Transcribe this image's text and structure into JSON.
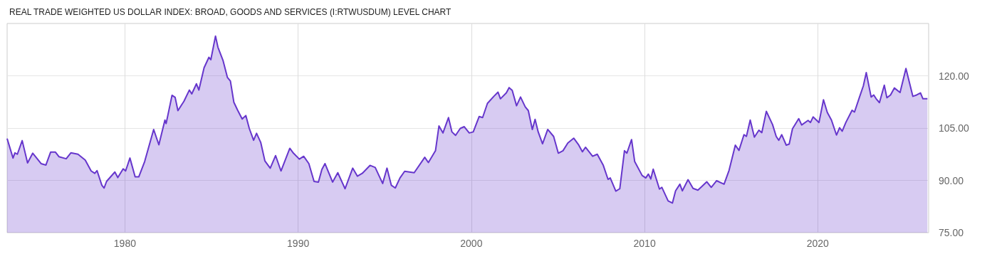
{
  "chart_data": {
    "type": "area",
    "title": "REAL TRADE WEIGHTED US DOLLAR INDEX: BROAD, GOODS AND SERVICES (I:RTWUSDUM) LEVEL CHART",
    "series": [
      {
        "color": "#6636cc",
        "x": [
          1973.2,
          1973.54,
          1973.65,
          1973.79,
          1974.07,
          1974.38,
          1974.68,
          1975.16,
          1975.44,
          1975.71,
          1975.99,
          1976.19,
          1976.61,
          1976.88,
          1977.29,
          1977.71,
          1978.05,
          1978.26,
          1978.39,
          1978.67,
          1978.8,
          1978.94,
          1979.42,
          1979.59,
          1979.9,
          1980.04,
          1980.29,
          1980.59,
          1980.8,
          1981.14,
          1981.66,
          1981.96,
          1982.31,
          1982.38,
          1982.72,
          1982.9,
          1983.06,
          1983.41,
          1983.72,
          1983.86,
          1984.13,
          1984.27,
          1984.57,
          1984.85,
          1984.96,
          1985.23,
          1985.37,
          1985.67,
          1985.92,
          1986.09,
          1986.29,
          1986.5,
          1986.77,
          1986.98,
          1987.18,
          1987.43,
          1987.6,
          1987.84,
          1988.08,
          1988.39,
          1988.7,
          1989.01,
          1989.52,
          1989.73,
          1990.07,
          1990.32,
          1990.62,
          1990.92,
          1991.17,
          1991.37,
          1991.55,
          1991.99,
          1992.29,
          1992.71,
          1993.15,
          1993.42,
          1993.7,
          1994.15,
          1994.45,
          1994.88,
          1995.13,
          1995.38,
          1995.61,
          1995.88,
          1996.15,
          1996.7,
          1997.31,
          1997.52,
          1997.93,
          1998.13,
          1998.36,
          1998.68,
          1998.88,
          1999.09,
          1999.36,
          1999.59,
          1999.88,
          2000.11,
          2000.45,
          2000.65,
          2000.93,
          2001.3,
          2001.54,
          2001.68,
          2002.02,
          2002.18,
          2002.36,
          2002.61,
          2002.84,
          2003.11,
          2003.29,
          2003.52,
          2003.68,
          2003.86,
          2004.11,
          2004.41,
          2004.75,
          2005.02,
          2005.29,
          2005.57,
          2005.91,
          2006.18,
          2006.41,
          2006.59,
          2007.0,
          2007.27,
          2007.61,
          2007.89,
          2008.02,
          2008.34,
          2008.57,
          2008.84,
          2008.98,
          2009.25,
          2009.43,
          2009.86,
          2010.07,
          2010.22,
          2010.36,
          2010.5,
          2010.86,
          2011.0,
          2011.36,
          2011.61,
          2011.79,
          2012.04,
          2012.18,
          2012.51,
          2012.8,
          2013.08,
          2013.3,
          2013.59,
          2013.85,
          2014.16,
          2014.59,
          2014.88,
          2015.24,
          2015.45,
          2015.74,
          2015.88,
          2016.1,
          2016.34,
          2016.6,
          2016.77,
          2017.03,
          2017.39,
          2017.6,
          2017.75,
          2017.92,
          2018.18,
          2018.35,
          2018.54,
          2018.9,
          2019.07,
          2019.44,
          2019.58,
          2019.73,
          2020.07,
          2020.33,
          2020.55,
          2020.79,
          2021.08,
          2021.26,
          2021.41,
          2021.62,
          2021.98,
          2022.12,
          2022.41,
          2022.63,
          2022.8,
          2023.08,
          2023.23,
          2023.37,
          2023.56,
          2023.84,
          2023.99,
          2024.2,
          2024.42,
          2024.75,
          2025.09,
          2025.49,
          2025.71,
          2025.93,
          2026.07,
          2026.33
        ],
        "values": [
          102.0,
          96.4,
          97.9,
          97.5,
          101.4,
          95.0,
          97.8,
          94.8,
          94.4,
          98.1,
          98.1,
          96.8,
          96.2,
          97.9,
          97.5,
          95.8,
          92.7,
          92.0,
          92.8,
          88.6,
          87.8,
          89.7,
          92.4,
          90.8,
          93.3,
          92.7,
          96.4,
          91.0,
          91.0,
          95.4,
          104.6,
          100.2,
          107.3,
          106.3,
          114.4,
          113.8,
          110.0,
          112.7,
          115.9,
          114.8,
          117.7,
          115.9,
          122.3,
          125.3,
          124.6,
          131.4,
          128.2,
          124.3,
          119.5,
          118.5,
          112.4,
          110.2,
          107.6,
          108.6,
          104.9,
          101.5,
          103.5,
          100.9,
          95.6,
          93.5,
          97.1,
          92.7,
          99.2,
          97.8,
          96.1,
          96.9,
          94.8,
          89.7,
          89.5,
          93.1,
          94.8,
          89.5,
          92.2,
          87.6,
          93.5,
          91.2,
          92.0,
          94.3,
          93.7,
          89.1,
          93.5,
          88.6,
          87.8,
          90.7,
          92.6,
          92.2,
          96.6,
          95.1,
          98.5,
          105.6,
          103.6,
          108.0,
          103.9,
          102.9,
          104.9,
          105.4,
          103.6,
          103.9,
          108.3,
          108.0,
          112.1,
          114.1,
          115.3,
          113.4,
          115.1,
          116.6,
          115.8,
          111.4,
          113.9,
          111.1,
          110.0,
          104.6,
          107.5,
          103.9,
          100.5,
          104.6,
          102.6,
          97.8,
          98.5,
          100.7,
          102.1,
          100.3,
          98.2,
          99.5,
          96.9,
          97.5,
          94.4,
          90.3,
          90.7,
          86.9,
          87.6,
          98.5,
          97.8,
          101.7,
          95.4,
          91.4,
          90.7,
          91.8,
          90.4,
          93.2,
          87.5,
          88.0,
          84.1,
          83.5,
          87.0,
          88.9,
          87.0,
          90.2,
          87.7,
          87.2,
          88.2,
          89.6,
          88.0,
          89.9,
          88.9,
          92.9,
          100.1,
          98.6,
          103.1,
          102.6,
          107.3,
          102.4,
          104.4,
          103.7,
          109.8,
          106.0,
          102.6,
          101.5,
          103.1,
          100.1,
          100.4,
          104.8,
          107.7,
          105.9,
          107.2,
          106.6,
          108.2,
          106.6,
          113.1,
          109.5,
          107.3,
          103.0,
          105.1,
          104.1,
          106.6,
          110.1,
          109.6,
          113.9,
          117.1,
          120.9,
          113.9,
          114.5,
          113.4,
          112.3,
          117.3,
          113.7,
          114.5,
          116.5,
          115.2,
          122.1,
          114.1,
          114.5,
          115.1,
          113.4,
          113.4
        ]
      }
    ],
    "xlim": [
      1973.2,
      2026.4
    ],
    "xticks": [
      1980,
      1990,
      2000,
      2010,
      2020
    ],
    "ylim": [
      75,
      135
    ],
    "yticks": [
      {
        "value": 75,
        "label": "75.00"
      },
      {
        "value": 90,
        "label": "90.00"
      },
      {
        "value": 105,
        "label": "105.00"
      },
      {
        "value": 120,
        "label": "120.00"
      }
    ],
    "grid": true
  }
}
